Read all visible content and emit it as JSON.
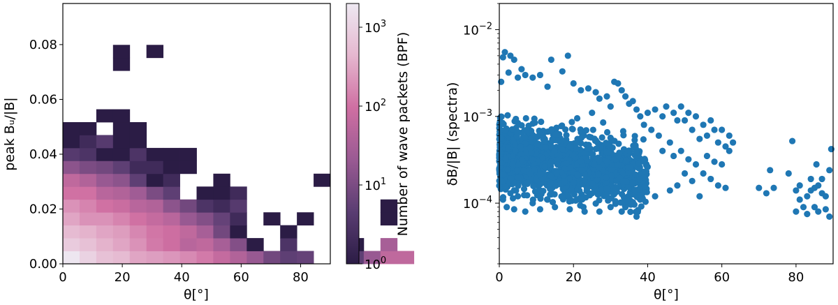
{
  "chart_data": [
    {
      "type": "heatmap",
      "xlabel": "θ[°]",
      "ylabel": "peak Bᵤ/|B|",
      "xlim": [
        0,
        90
      ],
      "ylim": [
        0,
        0.095
      ],
      "bin_width_x": 5.625,
      "bin_width_y": 0.0047,
      "xticks": [
        "0",
        "20",
        "40",
        "60",
        "80"
      ],
      "yticks": [
        "0.00",
        "0.02",
        "0.04",
        "0.06",
        "0.08"
      ],
      "colorbar": {
        "label": "Number of wave packets (BPF)",
        "scale": "log",
        "min": 1,
        "max": 2000,
        "ticks": [
          {
            "base": "10",
            "exp": "0",
            "value": 1
          },
          {
            "base": "10",
            "exp": "1",
            "value": 10
          },
          {
            "base": "10",
            "exp": "2",
            "value": 100
          },
          {
            "base": "10",
            "exp": "3",
            "value": 1000
          }
        ],
        "colormap": [
          "#2b1c45",
          "#5a3d72",
          "#9a5a93",
          "#cf6fa2",
          "#e5b7cf",
          "#eee9f2"
        ]
      },
      "counts_rows_from_bottom": [
        [
          1800,
          1000,
          600,
          500,
          300,
          260,
          220,
          170,
          120,
          70,
          40,
          20,
          8,
          5,
          6,
          0,
          0,
          5,
          20,
          60,
          60
        ],
        [
          800,
          600,
          400,
          300,
          200,
          120,
          90,
          50,
          60,
          30,
          12,
          1,
          0,
          3,
          0,
          0,
          0,
          1,
          0,
          30,
          0
        ],
        [
          500,
          400,
          300,
          250,
          160,
          110,
          90,
          60,
          30,
          8,
          1,
          0,
          0,
          1,
          0,
          0,
          0,
          0,
          0,
          0,
          0
        ],
        [
          300,
          200,
          200,
          150,
          100,
          70,
          50,
          20,
          12,
          6,
          2,
          0,
          1,
          0,
          1,
          0,
          0,
          0,
          0,
          1,
          0
        ],
        [
          200,
          150,
          100,
          80,
          50,
          40,
          15,
          8,
          3,
          2,
          4,
          0,
          0,
          0,
          0,
          0,
          0,
          0,
          0,
          1,
          0
        ],
        [
          100,
          100,
          50,
          40,
          25,
          10,
          5,
          0,
          1,
          1,
          2,
          0,
          0,
          0,
          0,
          0,
          0,
          0,
          0,
          0,
          0
        ],
        [
          60,
          40,
          20,
          15,
          5,
          1,
          2,
          0,
          0,
          1,
          0,
          0,
          0,
          0,
          0,
          1,
          0,
          0,
          0,
          0,
          0
        ],
        [
          15,
          10,
          8,
          5,
          2,
          2,
          1,
          1,
          0,
          0,
          0,
          0,
          0,
          0,
          0,
          0,
          0,
          0,
          0,
          0,
          0
        ],
        [
          4,
          3,
          1,
          1,
          3,
          1,
          1,
          1,
          0,
          0,
          0,
          0,
          0,
          0,
          0,
          0,
          0,
          0,
          0,
          0,
          0
        ],
        [
          1,
          2,
          4,
          1,
          1,
          0,
          0,
          0,
          0,
          0,
          0,
          0,
          0,
          0,
          0,
          0,
          0,
          0,
          0,
          0,
          0
        ],
        [
          1,
          1,
          0,
          1,
          1,
          0,
          0,
          0,
          0,
          0,
          0,
          0,
          0,
          0,
          0,
          0,
          0,
          0,
          0,
          0,
          0
        ],
        [
          0,
          0,
          1,
          1,
          0,
          0,
          0,
          0,
          0,
          0,
          0,
          0,
          0,
          0,
          0,
          0,
          0,
          0,
          0,
          0,
          0
        ],
        [
          0,
          0,
          0,
          0,
          0,
          0,
          0,
          0,
          0,
          0,
          0,
          0,
          0,
          0,
          0,
          0,
          0,
          0,
          0,
          0,
          0
        ],
        [
          0,
          0,
          0,
          0,
          0,
          0,
          0,
          0,
          0,
          0,
          0,
          0,
          0,
          0,
          0,
          0,
          0,
          0,
          0,
          0,
          0
        ],
        [
          0,
          0,
          0,
          0,
          0,
          0,
          0,
          0,
          0,
          0,
          0,
          0,
          0,
          0,
          0,
          0,
          0,
          0,
          0,
          0,
          0
        ],
        [
          0,
          0,
          0,
          1,
          0,
          0,
          0,
          0,
          0,
          0,
          0,
          0,
          0,
          0,
          0,
          0,
          0,
          0,
          0,
          0,
          0
        ],
        [
          0,
          0,
          0,
          1,
          0,
          1,
          0,
          0,
          0,
          0,
          0,
          0,
          0,
          0,
          0,
          0,
          0,
          0,
          0,
          0,
          0
        ]
      ]
    },
    {
      "type": "scatter",
      "xlabel": "θ[°]",
      "ylabel": "δB/|B| (spectra)",
      "xlim": [
        0,
        90
      ],
      "ylim": [
        2e-05,
        0.02
      ],
      "yscale": "log",
      "xticks": [
        "0",
        "20",
        "40",
        "60",
        "80"
      ],
      "yticks": [
        {
          "base": "10",
          "exp": "−4",
          "value": 0.0001
        },
        {
          "base": "10",
          "exp": "−3",
          "value": 0.001
        },
        {
          "base": "10",
          "exp": "−2",
          "value": 0.01
        }
      ],
      "marker_color": "#1f77b4",
      "points": [
        [
          1,
          0.0048
        ],
        [
          1.5,
          0.0055
        ],
        [
          3,
          0.005
        ],
        [
          4,
          0.0045
        ],
        [
          2.5,
          0.0032
        ],
        [
          6,
          0.0035
        ],
        [
          5,
          0.0028
        ],
        [
          7,
          0.003
        ],
        [
          0.5,
          0.0025
        ],
        [
          9,
          0.0028
        ],
        [
          11,
          0.003
        ],
        [
          14,
          0.0045
        ],
        [
          17,
          0.0033
        ],
        [
          18.5,
          0.005
        ],
        [
          13,
          0.0022
        ],
        [
          20,
          0.0024
        ],
        [
          22,
          0.002
        ],
        [
          24,
          0.0021
        ],
        [
          26,
          0.0019
        ],
        [
          27,
          0.0016
        ],
        [
          29,
          0.0017
        ],
        [
          31,
          0.0025
        ],
        [
          32,
          0.0024
        ],
        [
          33,
          0.002
        ],
        [
          34,
          0.0017
        ],
        [
          35,
          0.0014
        ],
        [
          36,
          0.0015
        ],
        [
          37,
          0.0012
        ],
        [
          38,
          0.001
        ],
        [
          40,
          0.0011
        ],
        [
          42,
          0.0012
        ],
        [
          44,
          0.001
        ],
        [
          45,
          0.0013
        ],
        [
          47,
          0.0011
        ],
        [
          48,
          0.0009
        ],
        [
          49,
          0.0013
        ],
        [
          50,
          0.0009
        ],
        [
          51,
          0.0011
        ],
        [
          53,
          0.001
        ],
        [
          55,
          0.0008
        ],
        [
          57,
          0.0009
        ],
        [
          58,
          0.0007
        ],
        [
          60,
          0.0007
        ],
        [
          62,
          0.0006
        ],
        [
          63,
          0.0005
        ],
        [
          21,
          0.00095
        ],
        [
          25,
          0.0011
        ],
        [
          28,
          0.00085
        ],
        [
          30,
          0.0013
        ],
        [
          39,
          0.0008
        ],
        [
          41,
          0.0007
        ],
        [
          43,
          0.0006
        ],
        [
          46,
          0.0005
        ],
        [
          52,
          0.0007
        ],
        [
          54,
          0.00055
        ],
        [
          56,
          0.0006
        ],
        [
          59,
          0.0005
        ],
        [
          61,
          0.00045
        ],
        [
          44,
          0.0004
        ],
        [
          47,
          0.00035
        ],
        [
          49,
          0.0004
        ],
        [
          51,
          0.00032
        ],
        [
          53,
          0.00028
        ],
        [
          56,
          0.00035
        ],
        [
          58,
          0.0003
        ],
        [
          60,
          0.00028
        ],
        [
          62,
          0.0004
        ],
        [
          50,
          0.00022
        ],
        [
          52,
          0.00018
        ],
        [
          55,
          0.00022
        ],
        [
          57,
          0.00019
        ],
        [
          59,
          0.00016
        ],
        [
          61,
          0.00015
        ],
        [
          46,
          0.00014
        ],
        [
          48,
          0.00016
        ],
        [
          54,
          0.00012
        ],
        [
          42,
          0.00012
        ],
        [
          38,
          0.00011
        ],
        [
          36,
          0.0001
        ],
        [
          34,
          9e-05
        ],
        [
          30,
          9e-05
        ],
        [
          27,
          8e-05
        ],
        [
          23,
          8e-05
        ],
        [
          19,
          8.5e-05
        ],
        [
          15,
          9e-05
        ],
        [
          11,
          8.5e-05
        ],
        [
          7,
          8e-05
        ],
        [
          4,
          8.5e-05
        ],
        [
          2,
          9e-05
        ],
        [
          1,
          0.00011
        ],
        [
          37,
          7e-05
        ],
        [
          33,
          8e-05
        ],
        [
          29,
          0.00012
        ],
        [
          25,
          0.00013
        ],
        [
          21,
          0.00011
        ],
        [
          17,
          0.00012
        ],
        [
          13,
          0.00011
        ],
        [
          9,
          0.0001
        ],
        [
          5,
          0.00012
        ],
        [
          3,
          0.00013
        ],
        [
          70,
          0.00015
        ],
        [
          72,
          0.00013
        ],
        [
          73,
          0.00024
        ],
        [
          74,
          0.00015
        ],
        [
          78,
          0.00022
        ],
        [
          79,
          0.00052
        ],
        [
          80,
          0.00014
        ],
        [
          81,
          0.00011
        ],
        [
          82,
          9e-05
        ],
        [
          83,
          0.00012
        ],
        [
          84,
          0.00014
        ],
        [
          85,
          9e-05
        ],
        [
          85.5,
          0.00028
        ],
        [
          86,
          0.00016
        ],
        [
          87,
          0.00019
        ],
        [
          88,
          0.00012
        ],
        [
          89,
          0.00024
        ],
        [
          89.5,
          0.00042
        ],
        [
          80,
          8e-05
        ],
        [
          83,
          7.5e-05
        ],
        [
          86,
          8e-05
        ],
        [
          88,
          8.5e-05
        ],
        [
          89,
          7e-05
        ],
        [
          84,
          0.00019
        ],
        [
          87,
          0.00013
        ],
        [
          81,
          0.00016
        ],
        [
          85,
          0.00015
        ]
      ]
    }
  ]
}
